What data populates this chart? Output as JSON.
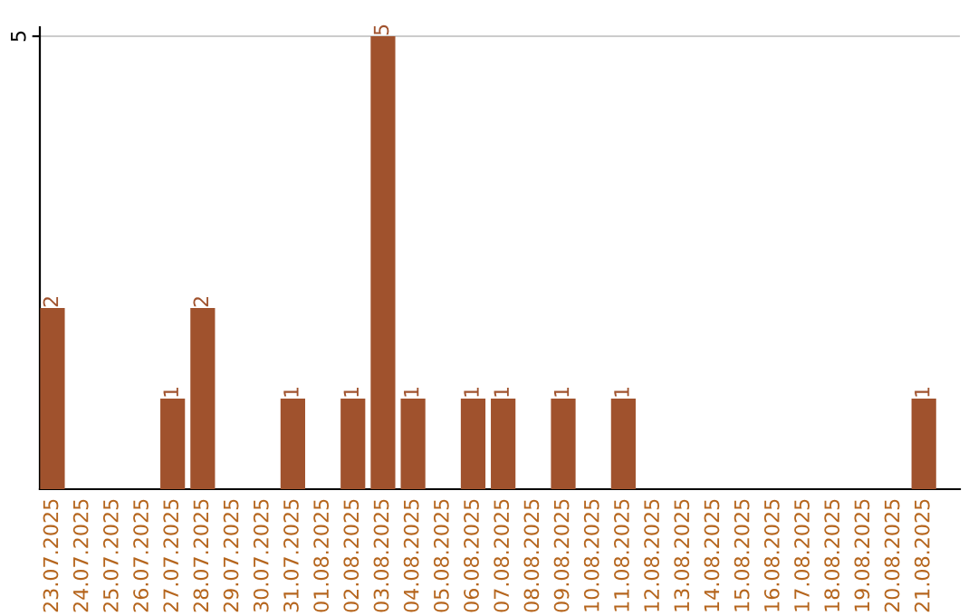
{
  "chart_data": {
    "type": "bar",
    "categories": [
      "23.07.2025",
      "24.07.2025",
      "25.07.2025",
      "26.07.2025",
      "27.07.2025",
      "28.07.2025",
      "29.07.2025",
      "30.07.2025",
      "31.07.2025",
      "01.08.2025",
      "02.08.2025",
      "03.08.2025",
      "04.08.2025",
      "05.08.2025",
      "06.08.2025",
      "07.08.2025",
      "08.08.2025",
      "09.08.2025",
      "10.08.2025",
      "11.08.2025",
      "12.08.2025",
      "13.08.2025",
      "14.08.2025",
      "15.08.2025",
      "16.08.2025",
      "17.08.2025",
      "18.08.2025",
      "19.08.2025",
      "20.08.2025",
      "21.08.2025"
    ],
    "values": [
      2,
      0,
      0,
      0,
      1,
      2,
      0,
      0,
      1,
      0,
      1,
      5,
      1,
      0,
      1,
      1,
      0,
      1,
      0,
      1,
      0,
      0,
      0,
      0,
      0,
      0,
      0,
      0,
      0,
      1
    ],
    "value_labels": [
      "2",
      null,
      null,
      null,
      "1",
      "2",
      null,
      null,
      "1",
      null,
      "1",
      "5",
      "1",
      null,
      "1",
      "1",
      null,
      "1",
      null,
      "1",
      null,
      null,
      null,
      null,
      null,
      null,
      null,
      null,
      null,
      "1"
    ],
    "color": "#a0522d",
    "ylim": [
      0,
      5.1
    ],
    "yticks": [
      5
    ],
    "grid": "y",
    "legend": false
  }
}
